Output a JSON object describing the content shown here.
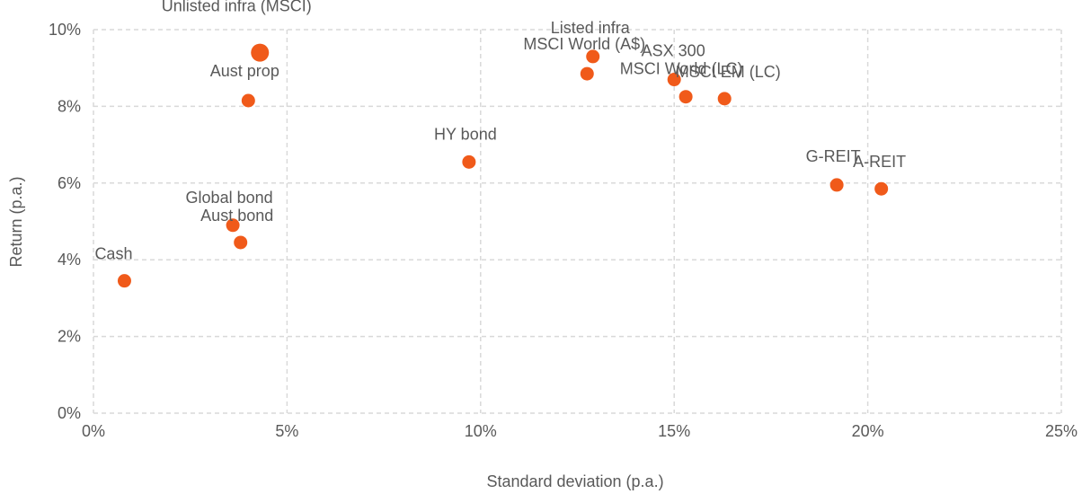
{
  "chart_data": {
    "type": "scatter",
    "title": "",
    "xlabel": "Standard deviation (p.a.)",
    "ylabel": "Return (p.a.)",
    "xlim": [
      0,
      25
    ],
    "ylim": [
      0,
      10
    ],
    "x_ticks": [
      0,
      5,
      10,
      15,
      20,
      25
    ],
    "y_ticks": [
      0,
      2,
      4,
      6,
      8,
      10
    ],
    "x_tick_labels": [
      "0%",
      "5%",
      "10%",
      "15%",
      "20%",
      "25%"
    ],
    "y_tick_labels": [
      "0%",
      "2%",
      "4%",
      "6%",
      "8%",
      "10%"
    ],
    "grid": true,
    "marker_color": "#f05a1a",
    "points": [
      {
        "label": "Cash",
        "x": 0.8,
        "y": 3.45
      },
      {
        "label": "Global bond",
        "x": 3.6,
        "y": 4.9
      },
      {
        "label": "Aust bond",
        "x": 3.8,
        "y": 4.45
      },
      {
        "label": "Aust prop",
        "x": 4.0,
        "y": 8.15
      },
      {
        "label": "Unlisted infra (MSCI)",
        "x": 4.3,
        "y": 9.4
      },
      {
        "label": "HY bond",
        "x": 9.7,
        "y": 6.55
      },
      {
        "label": "MSCI World (A$)",
        "x": 12.75,
        "y": 8.85
      },
      {
        "label": "Listed infra",
        "x": 12.9,
        "y": 9.3
      },
      {
        "label": "ASX 300",
        "x": 15.0,
        "y": 8.7
      },
      {
        "label": "MSCI World (LC)",
        "x": 15.3,
        "y": 8.25
      },
      {
        "label": "MSCI EM (LC)",
        "x": 16.3,
        "y": 8.2
      },
      {
        "label": "G-REIT",
        "x": 19.2,
        "y": 5.95
      },
      {
        "label": "A-REIT",
        "x": 20.35,
        "y": 5.85
      }
    ]
  }
}
